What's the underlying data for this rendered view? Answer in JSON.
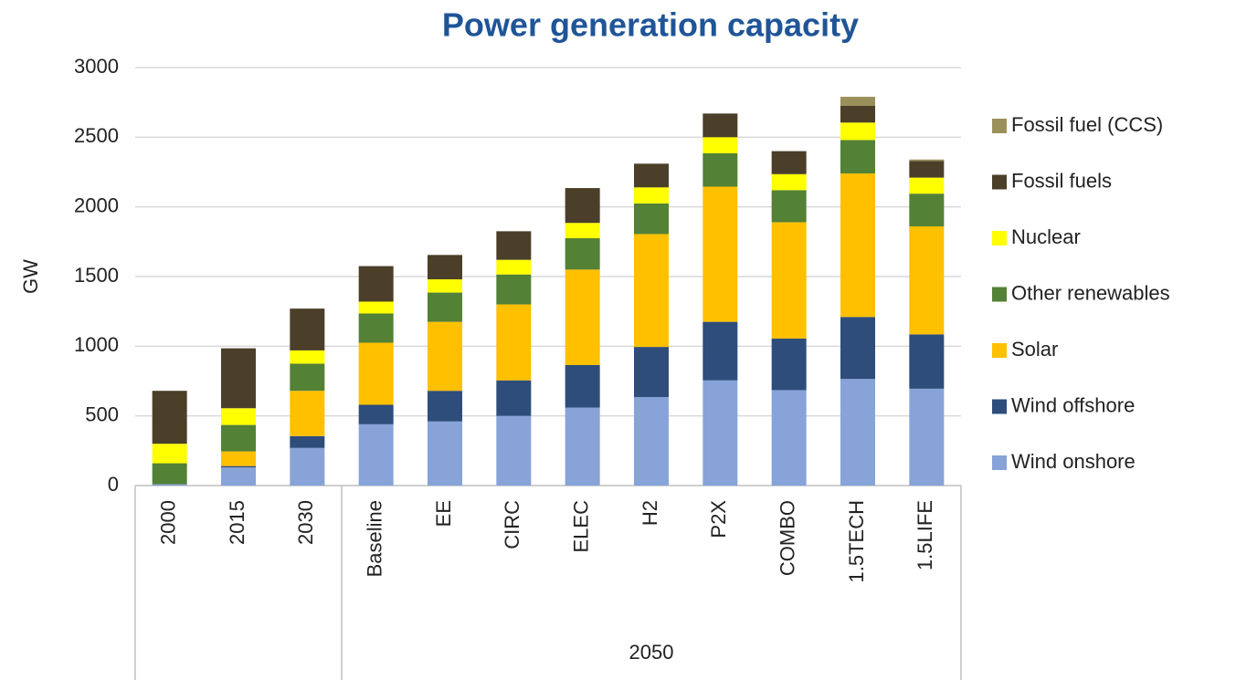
{
  "chart_data": {
    "type": "stacked_bar",
    "title": "Power generation capacity",
    "y_label": "GW",
    "categories": [
      "2000",
      "2015",
      "2030",
      "Baseline",
      "EE",
      "CIRC",
      "ELEC",
      "H2",
      "P2X",
      "COMBO",
      "1.5TECH",
      "1.5LIFE"
    ],
    "groups": [
      {
        "label": null,
        "count": 3
      },
      {
        "label": "2050",
        "count": 9
      }
    ],
    "ylim": [
      0,
      3000
    ],
    "yticks": [
      0,
      500,
      1000,
      1500,
      2000,
      2500,
      3000
    ],
    "grid": true,
    "legend": "right",
    "series": [
      {
        "name": "Wind onshore",
        "color": "#87a3d8",
        "values": [
          10,
          130,
          270,
          440,
          460,
          500,
          560,
          635,
          755,
          685,
          765,
          695
        ]
      },
      {
        "name": "Wind offshore",
        "color": "#2e4d7b",
        "values": [
          0,
          10,
          85,
          140,
          220,
          255,
          305,
          360,
          420,
          370,
          445,
          390
        ]
      },
      {
        "name": "Solar",
        "color": "#ffc000",
        "values": [
          0,
          105,
          325,
          445,
          495,
          545,
          685,
          810,
          970,
          835,
          1030,
          775
        ]
      },
      {
        "name": "Other renewables",
        "color": "#538135",
        "values": [
          150,
          190,
          195,
          210,
          210,
          215,
          225,
          220,
          240,
          230,
          240,
          235
        ]
      },
      {
        "name": "Nuclear",
        "color": "#ffff00",
        "values": [
          140,
          120,
          95,
          85,
          95,
          105,
          110,
          115,
          115,
          115,
          125,
          115
        ]
      },
      {
        "name": "Fossil fuels",
        "color": "#4b3f2a",
        "values": [
          380,
          430,
          300,
          255,
          175,
          205,
          250,
          170,
          170,
          165,
          120,
          120
        ]
      },
      {
        "name": "Fossil fuel (CCS)",
        "color": "#9c905a",
        "values": [
          null,
          null,
          null,
          null,
          null,
          null,
          null,
          null,
          null,
          null,
          65,
          10
        ]
      }
    ]
  }
}
